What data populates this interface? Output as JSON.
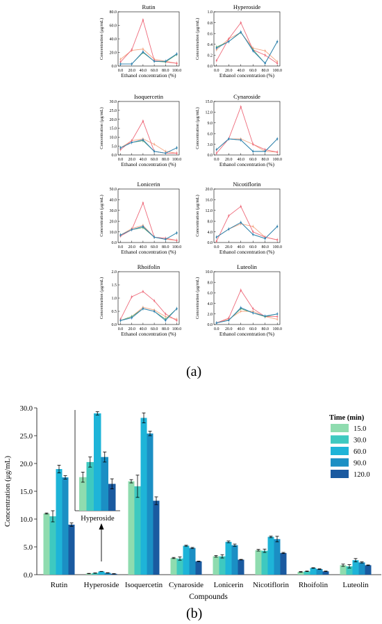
{
  "panel_labels": {
    "a": "(a)",
    "b": "(b)"
  },
  "chart_data": [
    {
      "type": "line",
      "id": "rutin",
      "title": "Rutin",
      "xlabel": "Ethanol concentration (%)",
      "ylabel": "Concentration (μg/mL)",
      "x": [
        0,
        20,
        40,
        60,
        80,
        100
      ],
      "x_tick_labels": [
        "0.0",
        "20.0",
        "40.0",
        "60.0",
        "80.0",
        "100.0"
      ],
      "ylim": [
        0,
        80
      ],
      "y_ticks": [
        0,
        20,
        40,
        60,
        80
      ],
      "y_tick_labels": [
        "0.0",
        "20.0",
        "40.0",
        "60.0",
        "80.0"
      ],
      "series": [
        {
          "color": "#f4a582",
          "values": [
            10,
            23,
            25,
            10,
            7,
            4
          ]
        },
        {
          "color": "#ee6a7a",
          "values": [
            6,
            24,
            68,
            8,
            6,
            4
          ]
        },
        {
          "color": "#5aa469",
          "values": [
            3,
            3,
            20,
            7,
            6,
            17
          ]
        },
        {
          "color": "#2c7fb8",
          "values": [
            3,
            3,
            21,
            7,
            7,
            18
          ]
        }
      ]
    },
    {
      "type": "line",
      "id": "hyperoside",
      "title": "Hyperoside",
      "xlabel": "Ethanol concentration (%)",
      "ylabel": "Concentration (μg/mL)",
      "x": [
        0,
        20,
        40,
        60,
        80,
        100
      ],
      "x_tick_labels": [
        "0.0",
        "20.0",
        "40.0",
        "60.0",
        "80.0",
        "100.0"
      ],
      "ylim": [
        0,
        1.0
      ],
      "y_ticks": [
        0,
        0.2,
        0.4,
        0.6,
        0.8,
        1.0
      ],
      "y_tick_labels": [
        "0.0",
        "0.2",
        "0.4",
        "0.6",
        "0.8",
        "1.0"
      ],
      "series": [
        {
          "color": "#f4a582",
          "values": [
            0.3,
            0.5,
            0.62,
            0.33,
            0.28,
            0.08
          ]
        },
        {
          "color": "#ee6a7a",
          "values": [
            0.1,
            0.5,
            0.8,
            0.3,
            0.2,
            0.05
          ]
        },
        {
          "color": "#5aa469",
          "values": [
            0.35,
            0.45,
            0.62,
            0.3,
            0.05,
            0.45
          ]
        },
        {
          "color": "#2c7fb8",
          "values": [
            0.33,
            0.45,
            0.63,
            0.28,
            0.05,
            0.45
          ]
        }
      ]
    },
    {
      "type": "line",
      "id": "isoquercetin",
      "title": "Isoquercetin",
      "xlabel": "Ethanol concentration (%)",
      "ylabel": "Concentration (μg/mL)",
      "x": [
        0,
        20,
        40,
        60,
        80,
        100
      ],
      "x_tick_labels": [
        "0.0",
        "20.0",
        "40.0",
        "60.0",
        "80.0",
        "100.0"
      ],
      "ylim": [
        0,
        30
      ],
      "y_ticks": [
        0,
        5,
        10,
        15,
        20,
        25,
        30
      ],
      "y_tick_labels": [
        "0.0",
        "5.0",
        "10.0",
        "15.0",
        "20.0",
        "25.0",
        "30.0"
      ],
      "series": [
        {
          "color": "#f4a582",
          "values": [
            4,
            8,
            9,
            6,
            2,
            1
          ]
        },
        {
          "color": "#ee6a7a",
          "values": [
            3,
            8,
            19,
            2,
            1,
            1
          ]
        },
        {
          "color": "#5aa469",
          "values": [
            4,
            7,
            8,
            2,
            1,
            4
          ]
        },
        {
          "color": "#2c7fb8",
          "values": [
            4,
            7,
            8.5,
            2,
            1,
            4
          ]
        }
      ]
    },
    {
      "type": "line",
      "id": "cynaroside",
      "title": "Cynaroside",
      "xlabel": "Ethanol concentration (%)",
      "ylabel": "Concentration (μg/mL)",
      "x": [
        0,
        20,
        40,
        60,
        80,
        100
      ],
      "x_tick_labels": [
        "0.0",
        "20.0",
        "40.0",
        "60.0",
        "80.0",
        "100.0"
      ],
      "ylim": [
        0,
        15
      ],
      "y_ticks": [
        0,
        3,
        6,
        9,
        12,
        15
      ],
      "y_tick_labels": [
        "0.0",
        "3.0",
        "6.0",
        "9.0",
        "12.0",
        "15.0"
      ],
      "series": [
        {
          "color": "#f4a582",
          "values": [
            1.5,
            4.5,
            4.5,
            3,
            1,
            0.8
          ]
        },
        {
          "color": "#ee6a7a",
          "values": [
            0.5,
            4.5,
            13.5,
            3,
            1.5,
            0.8
          ]
        },
        {
          "color": "#5aa469",
          "values": [
            1.5,
            4.5,
            4.2,
            1,
            1,
            4.5
          ]
        },
        {
          "color": "#2c7fb8",
          "values": [
            1.5,
            4.5,
            4.2,
            1,
            1,
            4.5
          ]
        }
      ]
    },
    {
      "type": "line",
      "id": "lonicerin",
      "title": "Lonicerin",
      "xlabel": "Ethanol concentration (%)",
      "ylabel": "Concentration (μg/mL)",
      "x": [
        0,
        20,
        40,
        60,
        80,
        100
      ],
      "x_tick_labels": [
        "0.0",
        "20.0",
        "40.0",
        "60.0",
        "80.0",
        "100.0"
      ],
      "ylim": [
        0,
        50
      ],
      "y_ticks": [
        0,
        10,
        20,
        30,
        40,
        50
      ],
      "y_tick_labels": [
        "0.0",
        "10.0",
        "20.0",
        "30.0",
        "40.0",
        "50.0"
      ],
      "series": [
        {
          "color": "#f4a582",
          "values": [
            7,
            13,
            16,
            5,
            3,
            2
          ]
        },
        {
          "color": "#ee6a7a",
          "values": [
            6,
            12,
            37,
            5,
            4,
            2
          ]
        },
        {
          "color": "#5aa469",
          "values": [
            7,
            12,
            14,
            5,
            3,
            9
          ]
        },
        {
          "color": "#2c7fb8",
          "values": [
            7,
            12,
            15,
            5,
            3,
            9
          ]
        }
      ]
    },
    {
      "type": "line",
      "id": "nicotiflorin",
      "title": "Nicotiflorin",
      "xlabel": "Ethanol concentration (%)",
      "ylabel": "Concentration (μg/mL)",
      "x": [
        0,
        20,
        40,
        60,
        80,
        100
      ],
      "x_tick_labels": [
        "0.0",
        "20.0",
        "40.0",
        "60.0",
        "80.0",
        "100.0"
      ],
      "ylim": [
        0,
        20
      ],
      "y_ticks": [
        0,
        4,
        8,
        12,
        16,
        20
      ],
      "y_tick_labels": [
        "0.0",
        "4.0",
        "8.0",
        "12.0",
        "16.0",
        "20.0"
      ],
      "series": [
        {
          "color": "#f4a582",
          "values": [
            2,
            5,
            7,
            6,
            2,
            1
          ]
        },
        {
          "color": "#ee6a7a",
          "values": [
            0.5,
            10,
            13.5,
            4,
            2,
            1
          ]
        },
        {
          "color": "#5aa469",
          "values": [
            2,
            5,
            7.5,
            3,
            1.5,
            6
          ]
        },
        {
          "color": "#2c7fb8",
          "values": [
            2,
            5,
            7.5,
            3,
            1.5,
            6
          ]
        }
      ]
    },
    {
      "type": "line",
      "id": "rhoifolin",
      "title": "Rhoifolin",
      "xlabel": "Ethanol concentration (%)",
      "ylabel": "Concentration (μg/mL)",
      "x": [
        0,
        20,
        40,
        60,
        80,
        100
      ],
      "x_tick_labels": [
        "0.0",
        "20.0",
        "40.0",
        "60.0",
        "80.0",
        "100.0"
      ],
      "ylim": [
        0,
        2.0
      ],
      "y_ticks": [
        0,
        0.5,
        1.0,
        1.5,
        2.0
      ],
      "y_tick_labels": [
        "0.0",
        "0.5",
        "1.0",
        "1.5",
        "2.0"
      ],
      "series": [
        {
          "color": "#f4a582",
          "values": [
            0.15,
            0.3,
            0.65,
            0.55,
            0.3,
            0.2
          ]
        },
        {
          "color": "#ee6a7a",
          "values": [
            0.2,
            1.05,
            1.25,
            0.9,
            0.4,
            0.15
          ]
        },
        {
          "color": "#5aa469",
          "values": [
            0.15,
            0.3,
            0.6,
            0.5,
            0.2,
            0.6
          ]
        },
        {
          "color": "#2c7fb8",
          "values": [
            0.15,
            0.25,
            0.6,
            0.5,
            0.15,
            0.6
          ]
        }
      ]
    },
    {
      "type": "line",
      "id": "luteolin",
      "title": "Luteolin",
      "xlabel": "Ethanol concentration (%)",
      "ylabel": "Concentration (μg/mL)",
      "x": [
        0,
        20,
        40,
        60,
        80,
        100
      ],
      "x_tick_labels": [
        "0.0",
        "20.0",
        "40.0",
        "60.0",
        "80.0",
        "100.0"
      ],
      "ylim": [
        0,
        10
      ],
      "y_ticks": [
        0,
        2,
        4,
        6,
        8,
        10
      ],
      "y_tick_labels": [
        "0.0",
        "2.0",
        "4.0",
        "6.0",
        "8.0",
        "10.0"
      ],
      "series": [
        {
          "color": "#f4a582",
          "values": [
            0.3,
            1,
            2.5,
            2.5,
            1.5,
            1
          ]
        },
        {
          "color": "#ee6a7a",
          "values": [
            0.3,
            1.2,
            6.5,
            3,
            1.5,
            1.5
          ]
        },
        {
          "color": "#5aa469",
          "values": [
            0.3,
            0.8,
            3,
            2.2,
            1.5,
            2
          ]
        },
        {
          "color": "#2c7fb8",
          "values": [
            0.3,
            0.8,
            3.2,
            2.2,
            1.6,
            2
          ]
        }
      ]
    },
    {
      "type": "bar",
      "id": "time-bars",
      "xlabel": "Compounds",
      "ylabel": "Concentration (μg/mL)",
      "categories": [
        "Rutin",
        "Hyperoside",
        "Isoquercetin",
        "Cynaroside",
        "Lonicerin",
        "Nicotiflorin",
        "Rhoifolin",
        "Luteolin"
      ],
      "ylim": [
        0,
        30
      ],
      "y_ticks": [
        0,
        5,
        10,
        15,
        20,
        25,
        30
      ],
      "y_tick_labels": [
        "0.0",
        "5.0",
        "10.0",
        "15.0",
        "20.0",
        "25.0",
        "30.0"
      ],
      "legend_title": "Time (min)",
      "legend_position": "top-right",
      "series": [
        {
          "name": "15.0",
          "color": "#8fdcaf",
          "values": [
            11.0,
            0.2,
            16.8,
            3.0,
            3.3,
            4.4,
            0.5,
            1.7
          ],
          "errors": [
            0.1,
            0.03,
            0.3,
            0.1,
            0.15,
            0.15,
            0.05,
            0.2
          ]
        },
        {
          "name": "30.0",
          "color": "#3ec9c0",
          "values": [
            10.5,
            0.29,
            15.9,
            2.9,
            3.3,
            4.3,
            0.6,
            1.5
          ],
          "errors": [
            1.0,
            0.03,
            2.0,
            0.3,
            0.3,
            0.3,
            0.05,
            0.3
          ]
        },
        {
          "name": "60.0",
          "color": "#1eb4d8",
          "values": [
            19.0,
            0.58,
            28.2,
            5.2,
            5.9,
            6.8,
            1.2,
            2.6
          ],
          "errors": [
            0.7,
            0.01,
            0.9,
            0.1,
            0.15,
            0.15,
            0.05,
            0.3
          ]
        },
        {
          "name": "90.0",
          "color": "#1b8fc4",
          "values": [
            17.5,
            0.32,
            25.4,
            4.8,
            5.3,
            6.4,
            1.0,
            2.2
          ],
          "errors": [
            0.3,
            0.03,
            0.4,
            0.1,
            0.2,
            0.5,
            0.05,
            0.1
          ]
        },
        {
          "name": "120.0",
          "color": "#1a5aa0",
          "values": [
            9.0,
            0.16,
            13.3,
            2.4,
            2.7,
            3.9,
            0.6,
            1.7
          ],
          "errors": [
            0.3,
            0.03,
            0.7,
            0.05,
            0.05,
            0.1,
            0.05,
            0.05
          ]
        }
      ],
      "inset": {
        "category": "Hyperoside",
        "label": "Hyperoside",
        "ylim": [
          0,
          0.6
        ],
        "values": [
          0.2,
          0.29,
          0.58,
          0.32,
          0.16
        ],
        "errors": [
          0.03,
          0.03,
          0.01,
          0.03,
          0.03
        ]
      }
    }
  ]
}
